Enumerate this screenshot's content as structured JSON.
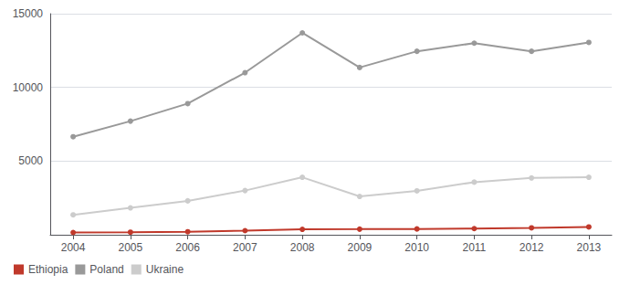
{
  "chart_data": {
    "type": "line",
    "x": [
      2004,
      2005,
      2006,
      2007,
      2008,
      2009,
      2010,
      2011,
      2012,
      2013
    ],
    "series": [
      {
        "name": "Ethiopia",
        "color": "#c0392b",
        "values": [
          156,
          175,
          205,
          280,
          370,
          380,
          395,
          420,
          470,
          530
        ]
      },
      {
        "name": "Poland",
        "color": "#999999",
        "values": [
          6650,
          7710,
          8900,
          11000,
          13700,
          11350,
          12450,
          13000,
          12450,
          13050
        ]
      },
      {
        "name": "Ukraine",
        "color": "#cccccc",
        "values": [
          1350,
          1825,
          2300,
          3000,
          3900,
          2600,
          2980,
          3570,
          3855,
          3900
        ]
      }
    ],
    "xlim": [
      2003.6,
      2013.4
    ],
    "xticks": [
      2004,
      2005,
      2006,
      2007,
      2008,
      2009,
      2010,
      2011,
      2012,
      2013
    ],
    "ylim": [
      0,
      15000
    ],
    "yticks": [
      5000,
      10000,
      15000
    ],
    "grid": true,
    "legend": "lower left",
    "marker": "circle"
  }
}
